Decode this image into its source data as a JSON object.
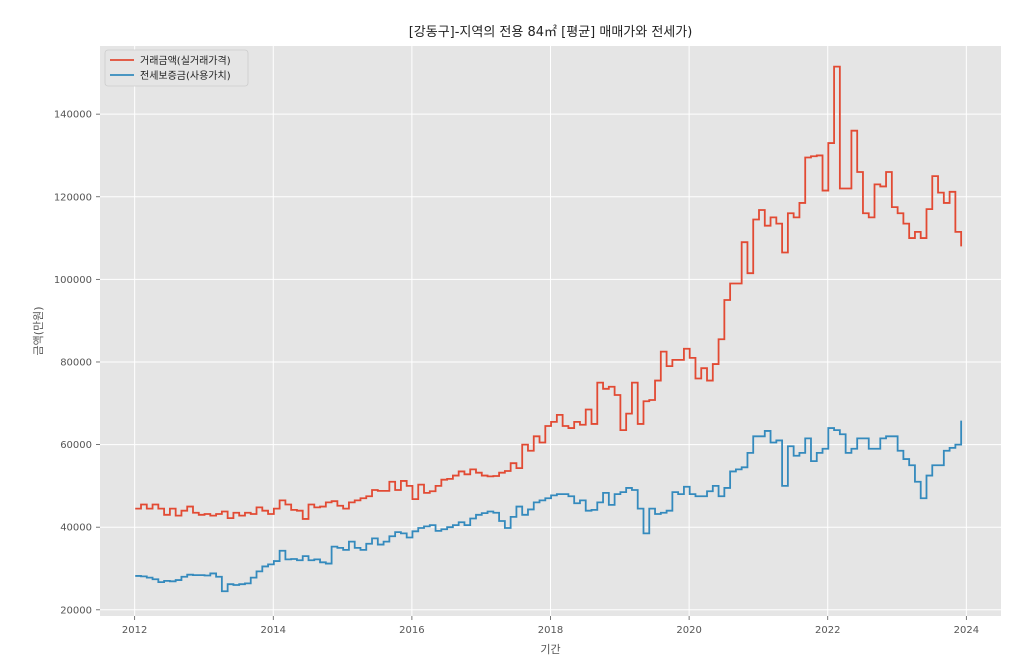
{
  "chart_data": {
    "type": "line",
    "title": "[강동구]-지역의 전용 84㎡ [평균] 매매가와 전세가)",
    "xlabel": "기간",
    "ylabel": "금액(만원)",
    "xlim": [
      2011.5,
      2024.5
    ],
    "ylim": [
      18500,
      156500
    ],
    "xticks": [
      2012,
      2014,
      2016,
      2018,
      2020,
      2022,
      2024
    ],
    "yticks": [
      20000,
      40000,
      60000,
      80000,
      100000,
      120000,
      140000
    ],
    "grid": true,
    "legend_position": "top-left",
    "x_start": "2012-01",
    "x_step": "1 month",
    "series": [
      {
        "name": "거래금액(실거래가격)",
        "color": "#E24A33",
        "values": [
          44500,
          45500,
          44500,
          45500,
          44500,
          43000,
          44500,
          42800,
          44000,
          45000,
          43500,
          43000,
          43200,
          42800,
          43200,
          43800,
          42200,
          43500,
          42800,
          43500,
          43200,
          44800,
          44000,
          43200,
          44500,
          46500,
          45500,
          44200,
          44000,
          42000,
          45500,
          44800,
          45000,
          46000,
          46300,
          45200,
          44500,
          46000,
          46500,
          47000,
          47500,
          49000,
          48800,
          48800,
          51000,
          49000,
          51200,
          50000,
          46800,
          50300,
          48300,
          48700,
          50000,
          51500,
          51700,
          52500,
          53500,
          52800,
          54000,
          53200,
          52500,
          52300,
          52400,
          53200,
          53600,
          55500,
          54300,
          60000,
          58500,
          62000,
          60500,
          64500,
          65500,
          67200,
          64500,
          64000,
          65500,
          64800,
          68500,
          65000,
          75000,
          73500,
          74000,
          72000,
          63500,
          67500,
          75000,
          65000,
          70500,
          70800,
          75500,
          82500,
          79000,
          80500,
          80500,
          83200,
          81000,
          76000,
          78500,
          75500,
          79500,
          85500,
          95000,
          99000,
          99000,
          109000,
          101500,
          114500,
          116800,
          113000,
          115000,
          113500,
          106500,
          116000,
          115000,
          118500,
          129500,
          129800,
          130000,
          121500,
          133000,
          151500,
          122000,
          122000,
          136000,
          126000,
          116000,
          115000,
          123000,
          122500,
          126000,
          117500,
          116000,
          113500,
          110000,
          111500,
          110000,
          117000,
          125000,
          121000,
          118500,
          121200,
          111500,
          108000
        ]
      },
      {
        "name": "전세보증금(사용가치)",
        "color": "#348ABD",
        "values": [
          28200,
          28100,
          27800,
          27400,
          26700,
          27000,
          26900,
          27200,
          28000,
          28500,
          28400,
          28400,
          28300,
          28800,
          28000,
          24500,
          26200,
          26000,
          26200,
          26400,
          27800,
          29300,
          30500,
          31000,
          31800,
          34300,
          32200,
          32300,
          32000,
          33000,
          32000,
          32200,
          31500,
          31200,
          35300,
          35000,
          34500,
          36500,
          35000,
          34500,
          36000,
          37300,
          35800,
          36500,
          37800,
          38800,
          38500,
          37500,
          39000,
          39800,
          40200,
          40500,
          39100,
          39500,
          40000,
          40500,
          41200,
          40500,
          42100,
          43000,
          43400,
          43800,
          43500,
          41500,
          39800,
          42500,
          45000,
          43000,
          44300,
          46000,
          46500,
          47000,
          47700,
          48000,
          48000,
          47500,
          45800,
          46500,
          44000,
          44200,
          46000,
          48300,
          45400,
          48000,
          48500,
          49500,
          49000,
          44500,
          38500,
          44500,
          43200,
          43500,
          44000,
          48500,
          48000,
          49800,
          48000,
          47500,
          47500,
          48700,
          50000,
          47500,
          49500,
          53500,
          54000,
          54500,
          58000,
          62000,
          62000,
          63300,
          60500,
          61000,
          50000,
          59600,
          57300,
          58000,
          61500,
          56000,
          58000,
          59000,
          64000,
          63500,
          62500,
          58000,
          59000,
          61500,
          61500,
          59000,
          59000,
          61500,
          62000,
          62000,
          58500,
          56500,
          55000,
          51000,
          47000,
          52500,
          55000,
          55000,
          58500,
          59200,
          60000,
          65800
        ]
      }
    ]
  }
}
